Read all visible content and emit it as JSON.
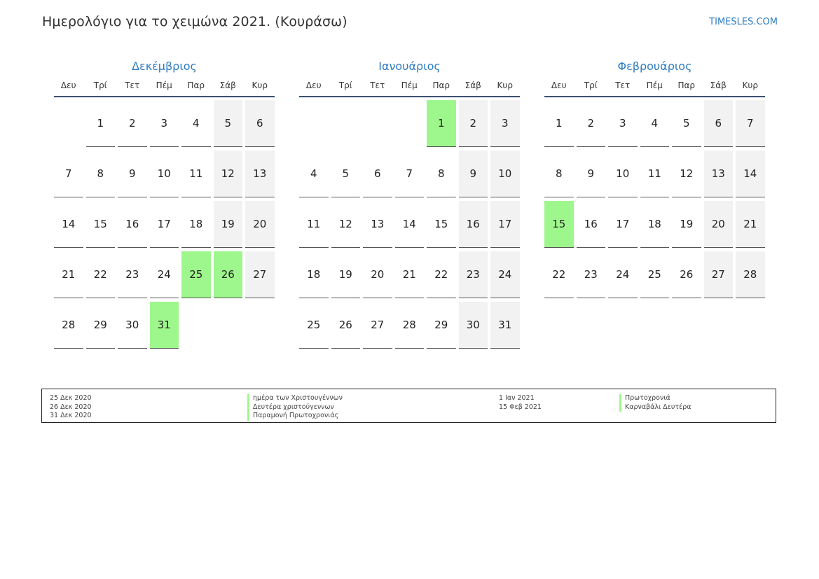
{
  "header": {
    "title": "Ημερολόγιο για το χειμώνα 2021. (Κουράσω)",
    "site": "TIMESLES.COM"
  },
  "weekdays": [
    "Δευ",
    "Τρί",
    "Τετ",
    "Πέμ",
    "Παρ",
    "Σάβ",
    "Κυρ"
  ],
  "months": [
    {
      "name": "Δεκέμβριος",
      "offset": 1,
      "days": 31,
      "holidays": [
        25,
        26,
        31
      ]
    },
    {
      "name": "Ιανουάριος",
      "offset": 4,
      "days": 31,
      "holidays": [
        1
      ]
    },
    {
      "name": "Φεβρουάριος",
      "offset": 0,
      "days": 28,
      "holidays": [
        15
      ]
    }
  ],
  "legend": {
    "col1_dates": [
      "25 Δεκ 2020",
      "26 Δεκ 2020",
      "31 Δεκ 2020"
    ],
    "col1_names": [
      "ημέρα των Χριστουγέννων",
      "Δευτέρα χριστούγεννων",
      "Παραμονή Πρωτοχρονιάς"
    ],
    "col2_dates": [
      "1 Ιαν 2021",
      "15 Φεβ 2021"
    ],
    "col2_names": [
      "Πρωτοχρονιά",
      "Καρναβάλι Δευτέρα"
    ]
  },
  "colors": {
    "accent": "#2e7bbf",
    "holiday": "#9ef78c",
    "weekend": "#f2f2f2",
    "header_rule": "#3d5170"
  }
}
